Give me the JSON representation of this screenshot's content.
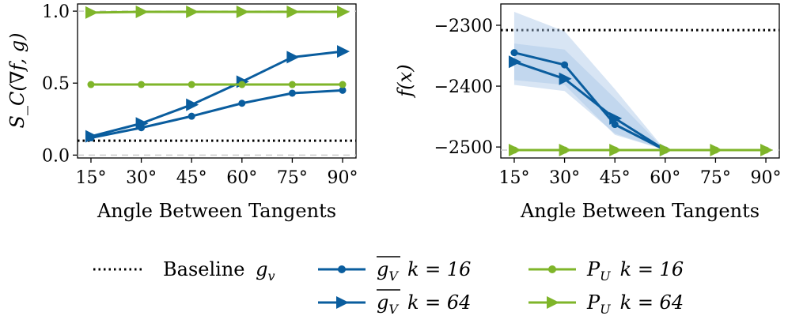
{
  "colors": {
    "blue": "#0a5d9e",
    "green": "#7fb52a",
    "band": "#a9c6e6",
    "baseline": "#000000",
    "zero_line": "#cccccc"
  },
  "chart_data": [
    {
      "type": "line",
      "ylabel": "S_C(∇f, g)",
      "xlabel": "Angle Between Tangents",
      "x": [
        15,
        30,
        45,
        60,
        75,
        90
      ],
      "x_tick_labels": [
        "15°",
        "30°",
        "45°",
        "60°",
        "75°",
        "90°"
      ],
      "xlim": [
        11,
        94
      ],
      "ylim": [
        -0.02,
        1.05
      ],
      "y_ticks": [
        0.0,
        0.5,
        1.0
      ],
      "y_tick_labels": [
        "0.0",
        "0.5",
        "1.0"
      ],
      "reference_lines": [
        {
          "name": "baseline",
          "value": 0.1,
          "style": "dotted"
        },
        {
          "name": "zero",
          "value": 0.0,
          "style": "dashed"
        },
        {
          "name": "one",
          "value": 1.0,
          "style": "dashed"
        }
      ],
      "series": [
        {
          "name": "gV k=16",
          "color": "blue",
          "marker": "circle",
          "values": [
            0.12,
            0.19,
            0.27,
            0.36,
            0.43,
            0.45
          ]
        },
        {
          "name": "gV k=64",
          "color": "blue",
          "marker": "triangle-right",
          "values": [
            0.13,
            0.22,
            0.35,
            0.51,
            0.68,
            0.72
          ]
        },
        {
          "name": "PU k=16",
          "color": "green",
          "marker": "circle",
          "values": [
            0.49,
            0.49,
            0.49,
            0.49,
            0.49,
            0.49
          ]
        },
        {
          "name": "PU k=64",
          "color": "green",
          "marker": "triangle-right",
          "values": [
            0.99,
            0.995,
            0.995,
            0.995,
            0.995,
            0.995
          ]
        }
      ]
    },
    {
      "type": "line",
      "ylabel": "f(x)",
      "xlabel": "Angle Between Tangents",
      "x": [
        15,
        30,
        45,
        60,
        75,
        90
      ],
      "x_tick_labels": [
        "15°",
        "30°",
        "45°",
        "60°",
        "75°",
        "90°"
      ],
      "xlim": [
        11,
        94
      ],
      "ylim": [
        -2518,
        -2265
      ],
      "y_ticks": [
        -2300,
        -2400,
        -2500
      ],
      "y_tick_labels": [
        "−2300",
        "−2400",
        "−2500"
      ],
      "reference_lines": [
        {
          "name": "baseline",
          "value": -2308,
          "style": "dotted"
        },
        {
          "name": "floor",
          "value": -2505,
          "style": "dashed"
        }
      ],
      "bands": [
        {
          "series": "gV k=16",
          "upper": [
            -2278,
            -2310,
            -2405,
            -2505
          ],
          "lower": [
            -2390,
            -2398,
            -2480,
            -2505
          ],
          "x": [
            15,
            30,
            45,
            60
          ]
        },
        {
          "series": "gV k=64",
          "upper": [
            -2330,
            -2340,
            -2420,
            -2505
          ],
          "lower": [
            -2398,
            -2408,
            -2478,
            -2505
          ],
          "x": [
            15,
            30,
            45,
            60
          ]
        }
      ],
      "series": [
        {
          "name": "gV k=16",
          "color": "blue",
          "marker": "circle",
          "x": [
            15,
            30,
            45,
            60
          ],
          "values": [
            -2345,
            -2365,
            -2463,
            -2505
          ]
        },
        {
          "name": "gV k=64",
          "color": "blue",
          "marker": "triangle-right",
          "x": [
            15,
            30,
            45,
            60
          ],
          "values": [
            -2360,
            -2388,
            -2453,
            -2505
          ]
        },
        {
          "name": "PU k=16",
          "color": "green",
          "marker": "circle",
          "values": [
            -2505,
            -2505,
            -2505,
            -2505,
            -2505,
            -2505
          ]
        },
        {
          "name": "PU k=64",
          "color": "green",
          "marker": "triangle-right",
          "values": [
            -2505,
            -2505,
            -2505,
            -2505,
            -2505,
            -2505
          ]
        }
      ]
    }
  ],
  "legend": {
    "baseline": {
      "label": "Baseline",
      "sub": "v",
      "var": "g"
    },
    "gv16": {
      "name": "g",
      "sub": "V",
      "k": "k = 16"
    },
    "gv64": {
      "name": "g",
      "sub": "V",
      "k": "k = 64"
    },
    "pu16": {
      "name": "P",
      "sub": "U",
      "k": "k = 16"
    },
    "pu64": {
      "name": "P",
      "sub": "U",
      "k": "k = 64"
    }
  }
}
